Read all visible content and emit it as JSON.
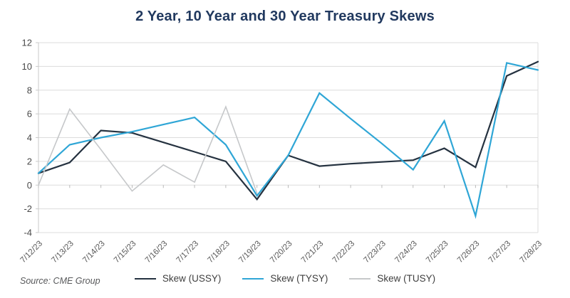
{
  "title": "2 Year, 10 Year and 30 Year Treasury Skews",
  "source": "Source: CME Group",
  "colors": {
    "title_navy": "#21395f",
    "gridline": "#dcdcdc",
    "plot_border": "#c9c9c9",
    "tick": "#b9b9b9",
    "axis_label": "#4a4a4a",
    "x_label": "#595959",
    "ussy_line": "#253240",
    "tysy_line": "#2fa6d6",
    "tusy_line": "#c6c8ca"
  },
  "chart_data": {
    "type": "line",
    "title": "2 Year, 10 Year and 30 Year Treasury Skews",
    "xlabel": "",
    "ylabel": "",
    "categories": [
      "7/12/23",
      "7/13/23",
      "7/14/23",
      "7/15/23",
      "7/16/23",
      "7/17/23",
      "7/18/23",
      "7/19/23",
      "7/20/23",
      "7/21/23",
      "7/22/23",
      "7/23/23",
      "7/24/23",
      "7/25/23",
      "7/26/23",
      "7/27/23",
      "7/28/23"
    ],
    "series": [
      {
        "name": "Skew (USSY)",
        "color": "#253240",
        "values": [
          1.0,
          1.9,
          4.6,
          4.4,
          3.6,
          2.8,
          2.0,
          -1.2,
          2.5,
          1.6,
          1.8,
          1.95,
          2.1,
          3.1,
          1.5,
          9.2,
          10.4
        ]
      },
      {
        "name": "Skew (TYSY)",
        "color": "#2fa6d6",
        "values": [
          1.0,
          3.4,
          4.0,
          4.5,
          5.1,
          5.7,
          3.4,
          -0.9,
          2.5,
          7.75,
          5.6,
          3.5,
          1.3,
          5.4,
          -2.6,
          10.3,
          9.7
        ]
      },
      {
        "name": "Skew (TUSY)",
        "color": "#c6c8ca",
        "values": [
          0.0,
          6.4,
          3.0,
          -0.5,
          1.7,
          0.25,
          6.6,
          -0.7,
          null,
          null,
          null,
          null,
          null,
          null,
          null,
          null,
          null
        ]
      }
    ],
    "ylim": [
      -4,
      12
    ],
    "ytick_step": 2,
    "yticks": [
      -4,
      -2,
      0,
      2,
      4,
      6,
      8,
      10,
      12
    ],
    "grid": "horizontal",
    "legend_position": "bottom-center"
  }
}
